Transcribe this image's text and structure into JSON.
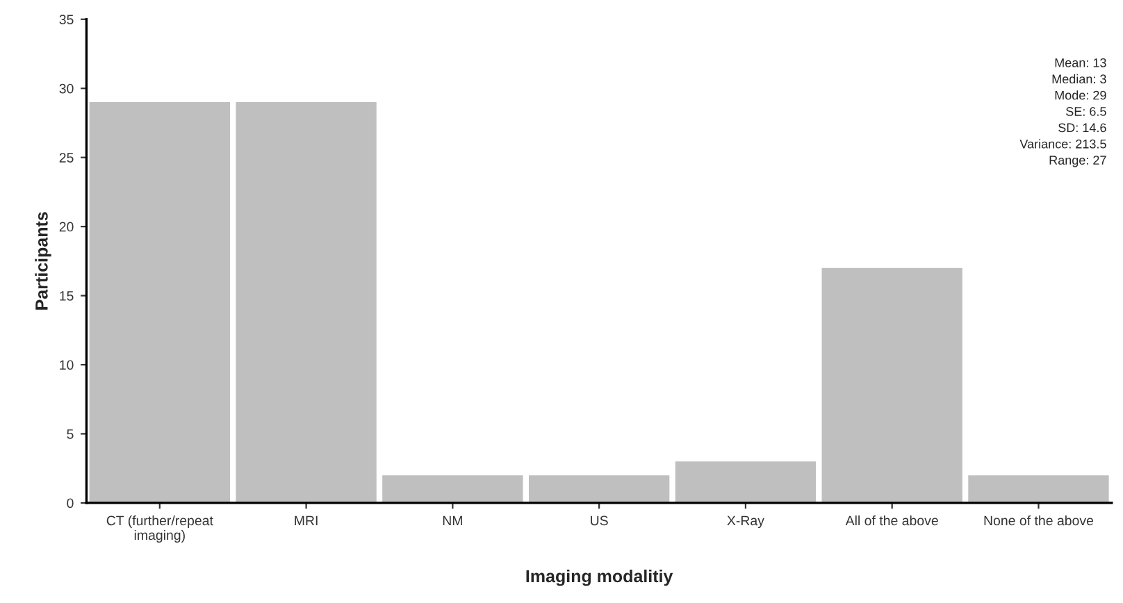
{
  "chart_data": {
    "type": "bar",
    "xlabel": "Imaging modalitiy",
    "ylabel": "Participants",
    "categories": [
      "CT (further/repeat\nimaging)",
      "MRI",
      "NM",
      "US",
      "X-Ray",
      "All of the above",
      "None of the above"
    ],
    "values": [
      29,
      29,
      2,
      2,
      3,
      17,
      2
    ],
    "color": "#bfbfbf",
    "ylim": [
      0,
      35
    ],
    "yticks": [
      0,
      5,
      10,
      15,
      20,
      25,
      30,
      35
    ],
    "grid": false,
    "legend": false,
    "annotations": [
      "Mean: 13\nMedian: 3\nMode: 29\nSE: 6.5\nSD: 14.6\nVariance: 213.5\nRange: 27"
    ]
  }
}
